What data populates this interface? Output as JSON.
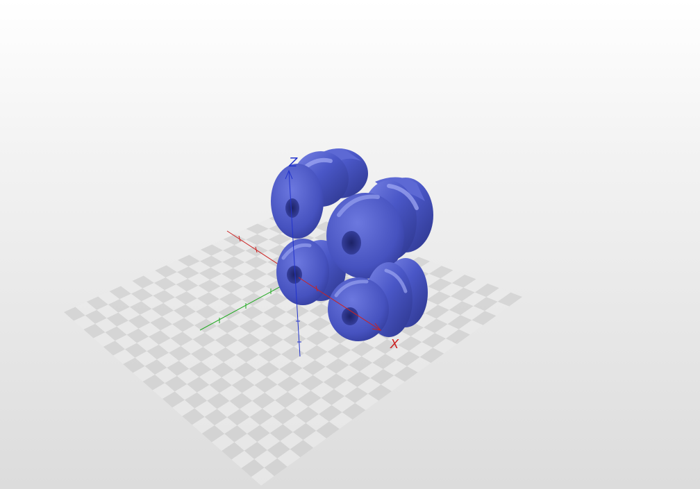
{
  "viewport": {
    "background_top": "#ffffff",
    "background_bottom": "#dcdcdc"
  },
  "floor": {
    "light_color": "#e9e9e9",
    "dark_color": "#cfcfcf"
  },
  "axes": {
    "x": {
      "label": "X",
      "color": "#cc2222"
    },
    "y": {
      "label": "",
      "color": "#22aa22"
    },
    "z": {
      "label": "Z",
      "color": "#2233cc"
    }
  },
  "model": {
    "color": "#4a57c7",
    "highlight": "#8d98f0",
    "shadow": "#2b3489",
    "part_count": 4
  }
}
